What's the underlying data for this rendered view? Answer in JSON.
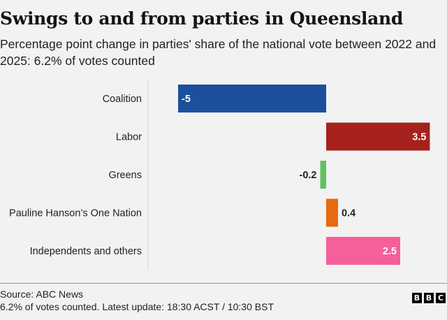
{
  "header": {
    "title": "Swings to and from parties in Queensland",
    "subtitle": "Percentage point change in parties' share of the national vote between 2022 and 2025: 6.2% of votes counted"
  },
  "chart_data": {
    "type": "bar",
    "orientation": "horizontal",
    "categories": [
      "Coalition",
      "Labor",
      "Greens",
      "Pauline Hanson’s One Nation",
      "Independents and others"
    ],
    "values": [
      -5,
      3.5,
      -0.2,
      0.4,
      2.5
    ],
    "value_labels": [
      "-5",
      "3.5",
      "-0.2",
      "0.4",
      "2.5"
    ],
    "colors": [
      "#1c4f9c",
      "#a6211c",
      "#62c063",
      "#e66a10",
      "#f65f9b"
    ],
    "title": "Swings to and from parties in Queensland",
    "xlabel": "",
    "ylabel": "",
    "grid": false
  },
  "footer": {
    "source": "Source: ABC News",
    "note": "6.2% of votes counted. Latest update: 18:30 ACST / 10:30 BST",
    "logo_letters": [
      "B",
      "B",
      "C"
    ]
  }
}
